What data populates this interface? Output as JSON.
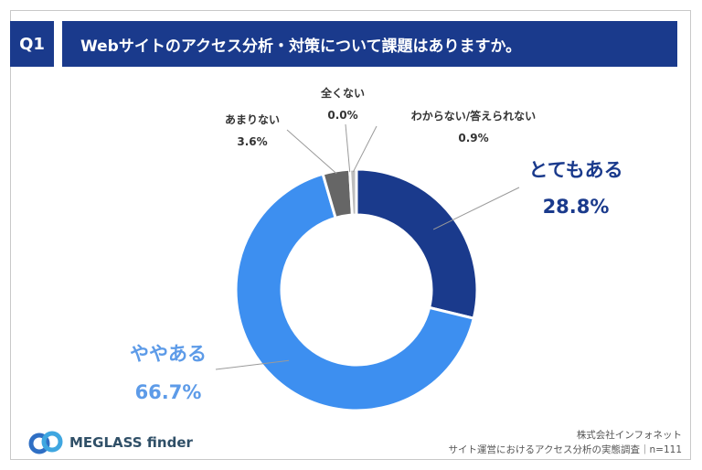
{
  "header": {
    "badge": "Q1",
    "question": "Webサイトのアクセス分析・対策について課題はありますか。"
  },
  "colors": {
    "header_bg": "#1a3a8c",
    "slice_1": "#1a3a8c",
    "slice_2": "#3d8ff0",
    "slice_3": "#666666",
    "slice_4": "#9a9a9a",
    "slice_5": "#bdbdbd",
    "label_dark_blue": "#1a3a8c",
    "label_light_blue": "#5d9be8",
    "label_gray": "#333333"
  },
  "chart_data": {
    "type": "pie",
    "style": "donut",
    "categories": [
      "とてもある",
      "ややある",
      "あまりない",
      "全くない",
      "わからない/答えられない"
    ],
    "values": [
      28.8,
      66.7,
      3.6,
      0.0,
      0.9
    ],
    "value_labels": [
      "28.8%",
      "66.7%",
      "3.6%",
      "0.0%",
      "0.9%"
    ]
  },
  "footer": {
    "logo_text": "MEGLASS finder",
    "source_line1": "株式会社インフォネット",
    "source_line2": "サイト運営におけるアクセス分析の実態調査｜n=111"
  }
}
